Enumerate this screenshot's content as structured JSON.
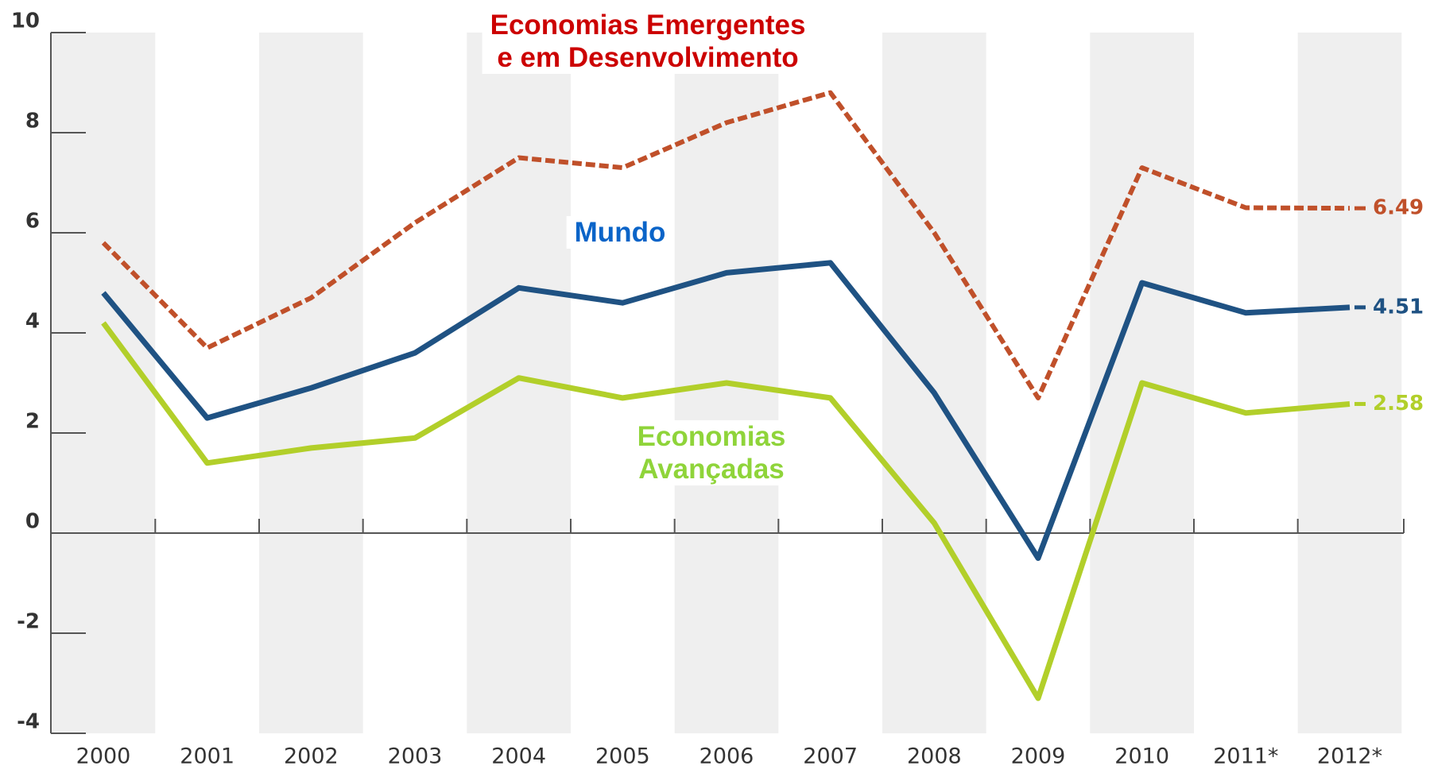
{
  "chart_data": {
    "type": "line",
    "categories": [
      "2000",
      "2001",
      "2002",
      "2003",
      "2004",
      "2005",
      "2006",
      "2007",
      "2008",
      "2009",
      "2010",
      "2011*",
      "2012*"
    ],
    "series": [
      {
        "name": "Economias Emergentes\ne em Desenvolvimento",
        "color": "#c0502a",
        "label_color": "#cc0000",
        "dashed": true,
        "values": [
          5.8,
          3.7,
          4.7,
          6.2,
          7.5,
          7.3,
          8.2,
          8.8,
          6.0,
          2.7,
          7.3,
          6.5,
          6.49
        ]
      },
      {
        "name": "Mundo",
        "color": "#1f5283",
        "label_color": "#0a64c8",
        "dashed": false,
        "values": [
          4.8,
          2.3,
          2.9,
          3.6,
          4.9,
          4.6,
          5.2,
          5.4,
          2.8,
          -0.5,
          5.0,
          4.4,
          4.51
        ]
      },
      {
        "name": "Economias\nAvançadas",
        "color": "#b2cf2a",
        "label_color": "#8fd43a",
        "dashed": false,
        "values": [
          4.2,
          1.4,
          1.7,
          1.9,
          3.1,
          2.7,
          3.0,
          2.7,
          0.2,
          -3.3,
          3.0,
          2.4,
          2.58
        ]
      }
    ],
    "ylim": [
      -4,
      10
    ],
    "yticks": [
      -4,
      -2,
      0,
      2,
      4,
      6,
      8,
      10
    ],
    "bands": true
  }
}
